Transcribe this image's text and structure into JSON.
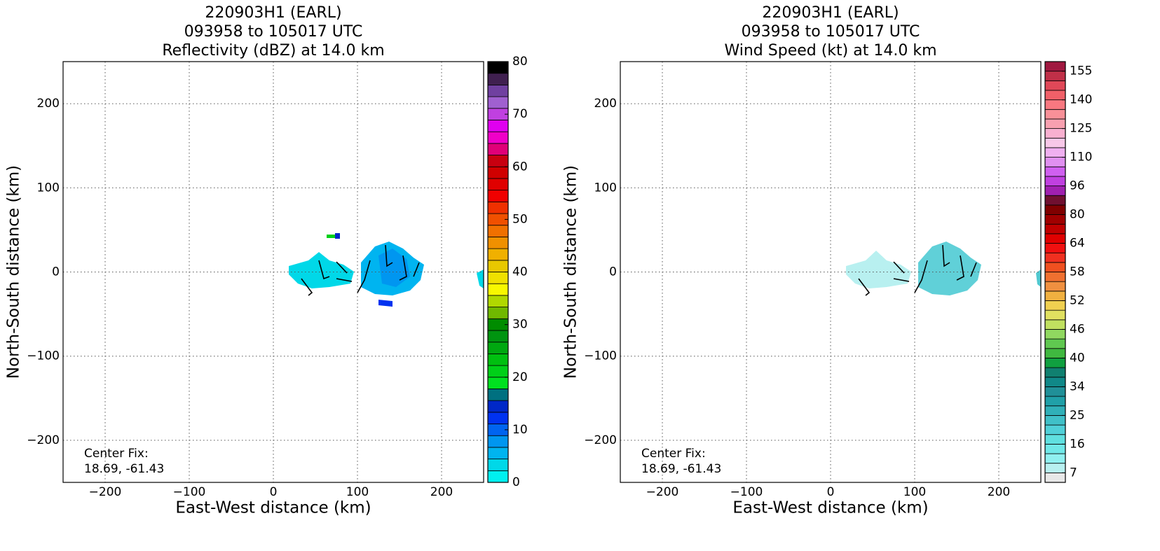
{
  "chart_data": [
    {
      "type": "heatmap",
      "title": [
        "220903H1 (EARL)",
        "093958 to 105017 UTC",
        "Reflectivity (dBZ) at 14.0 km"
      ],
      "xlabel": "East-West distance (km)",
      "ylabel": "North-South distance (km)",
      "xlim": [
        -250,
        250
      ],
      "ylim": [
        -250,
        250
      ],
      "xticks": [
        {
          "value": -200,
          "label": "−200"
        },
        {
          "value": -100,
          "label": "−100"
        },
        0,
        100,
        200
      ],
      "yticks": [
        {
          "value": -200,
          "label": "−200"
        },
        {
          "value": -100,
          "label": "−100"
        },
        0,
        100,
        200
      ],
      "grid": true,
      "annotation": [
        "Center Fix:",
        "18.69, -61.43"
      ],
      "colorbar": {
        "lim": [
          0,
          80
        ],
        "ticks": [
          0,
          10,
          20,
          30,
          40,
          50,
          60,
          70,
          80
        ],
        "colors": [
          "#00f0f0",
          "#00d8e8",
          "#00b4f0",
          "#0096f0",
          "#0064f0",
          "#0032f0",
          "#0028c8",
          "#007080",
          "#00e020",
          "#00d018",
          "#00c010",
          "#00a810",
          "#009410",
          "#008c00",
          "#70b800",
          "#b0d800",
          "#f8f800",
          "#f0e000",
          "#e8c800",
          "#f0b000",
          "#f09000",
          "#f07000",
          "#f05000",
          "#f03000",
          "#f00000",
          "#e00000",
          "#d00000",
          "#c80010",
          "#e00078",
          "#f000c8",
          "#e000f0",
          "#c040e0",
          "#a060d0",
          "#7040a0",
          "#402050",
          "#000000"
        ]
      }
    },
    {
      "type": "heatmap",
      "title": [
        "220903H1 (EARL)",
        "093958 to 105017 UTC",
        "Wind Speed (kt) at 14.0 km"
      ],
      "xlabel": "East-West distance (km)",
      "ylabel": "North-South distance (km)",
      "xlim": [
        -250,
        250
      ],
      "ylim": [
        -250,
        250
      ],
      "xticks": [
        {
          "value": -200,
          "label": "−200"
        },
        {
          "value": -100,
          "label": "−100"
        },
        0,
        100,
        200
      ],
      "yticks": [
        {
          "value": -200,
          "label": "−200"
        },
        {
          "value": -100,
          "label": "−100"
        },
        0,
        100,
        200
      ],
      "grid": true,
      "annotation": [
        "Center Fix:",
        "18.69, -61.43"
      ],
      "colorbar": {
        "ticks": [
          7,
          16,
          25,
          34,
          40,
          46,
          52,
          58,
          64,
          80,
          96,
          110,
          125,
          140,
          155
        ],
        "colors": [
          "#e8e8e8",
          "#b8f0f0",
          "#90f0f0",
          "#70e8e8",
          "#60e0e0",
          "#50d0d8",
          "#40c0c8",
          "#30b0b8",
          "#20a0a8",
          "#209098",
          "#108888",
          "#108070",
          "#10a040",
          "#40b840",
          "#60c850",
          "#90d860",
          "#c0e060",
          "#e0e060",
          "#f0d050",
          "#f0b040",
          "#f09040",
          "#f07030",
          "#f05020",
          "#f03020",
          "#f01010",
          "#e00000",
          "#c00000",
          "#a00000",
          "#800000",
          "#701030",
          "#a020b0",
          "#c040e0",
          "#d060f0",
          "#e090f0",
          "#f0b0f0",
          "#f8c8e8",
          "#f8b0d0",
          "#f8a0b0",
          "#f89098",
          "#f87880",
          "#f06068",
          "#e04858",
          "#c03048",
          "#a01840"
        ]
      }
    }
  ]
}
